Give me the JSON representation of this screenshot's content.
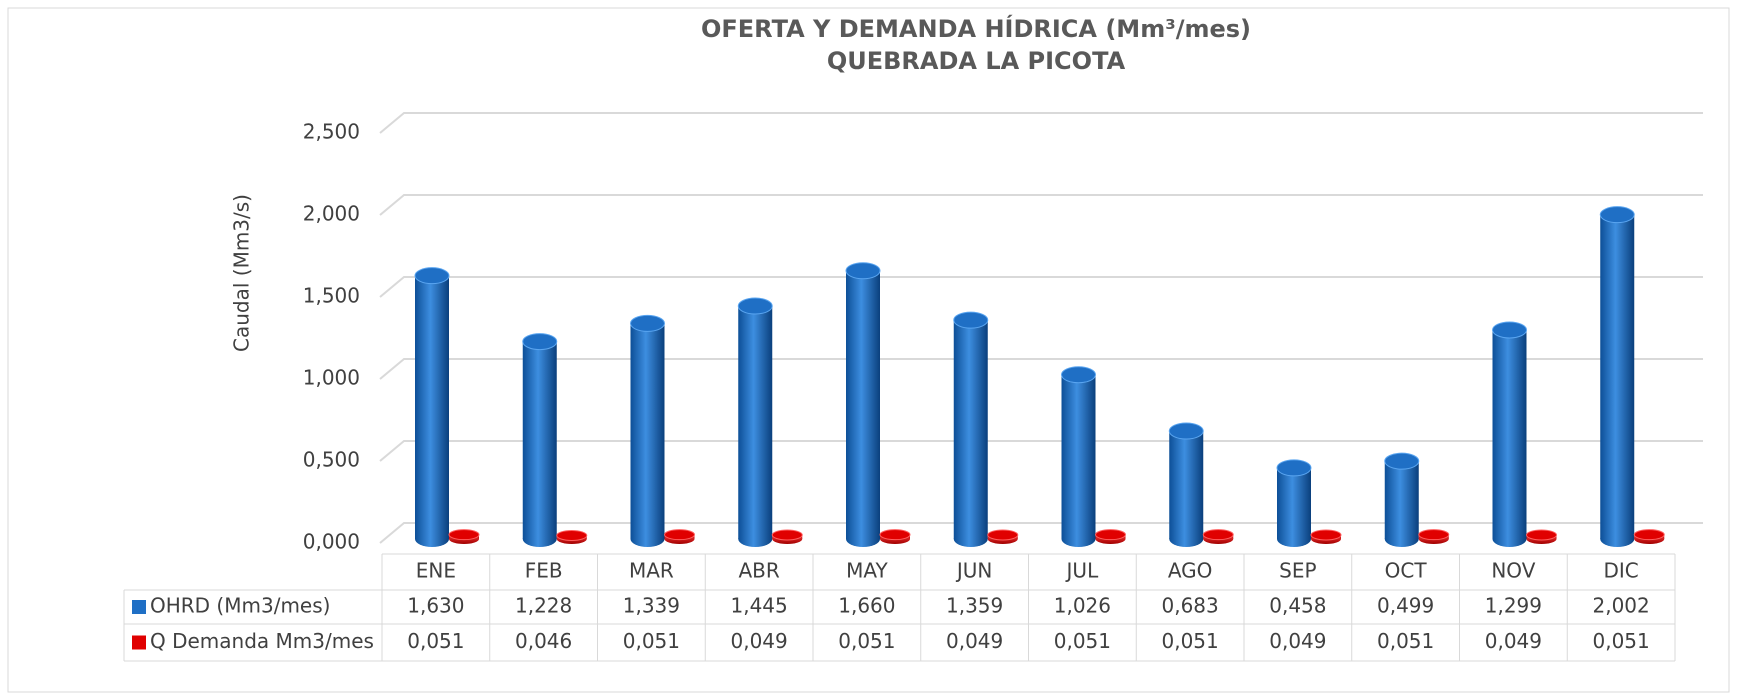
{
  "chart_data": {
    "type": "bar",
    "title": "OFERTA Y DEMANDA HÍDRICA (Mm³/mes)",
    "subtitle": "QUEBRADA LA PICOTA",
    "y_label": "Caudal (Mm3/s)",
    "categories": [
      "ENE",
      "FEB",
      "MAR",
      "ABR",
      "MAY",
      "JUN",
      "JUL",
      "AGO",
      "SEP",
      "OCT",
      "NOV",
      "DIC"
    ],
    "series": [
      {
        "name": "OHRD (Mm3/mes)",
        "color": "#1f6fc5",
        "values": [
          1.63,
          1.228,
          1.339,
          1.445,
          1.66,
          1.359,
          1.026,
          0.683,
          0.458,
          0.499,
          1.299,
          2.002
        ],
        "value_labels": [
          "1,630",
          "1,228",
          "1,339",
          "1,445",
          "1,660",
          "1,359",
          "1,026",
          "0,683",
          "0,458",
          "0,499",
          "1,299",
          "2,002"
        ]
      },
      {
        "name": "Q Demanda Mm3/mes",
        "color": "#e00000",
        "values": [
          0.051,
          0.046,
          0.051,
          0.049,
          0.051,
          0.049,
          0.051,
          0.051,
          0.049,
          0.051,
          0.049,
          0.051
        ],
        "value_labels": [
          "0,051",
          "0,046",
          "0,051",
          "0,049",
          "0,051",
          "0,049",
          "0,051",
          "0,051",
          "0,049",
          "0,051",
          "0,049",
          "0,051"
        ]
      }
    ],
    "ylim": [
      0,
      2.5
    ],
    "yticks": [
      {
        "value": 0,
        "label": "0,000"
      },
      {
        "value": 0.5,
        "label": "0,500"
      },
      {
        "value": 1,
        "label": "1,000"
      },
      {
        "value": 1.5,
        "label": "1,500"
      },
      {
        "value": 2,
        "label": "2,000"
      },
      {
        "value": 2.5,
        "label": "2,500"
      }
    ],
    "grid": true
  }
}
